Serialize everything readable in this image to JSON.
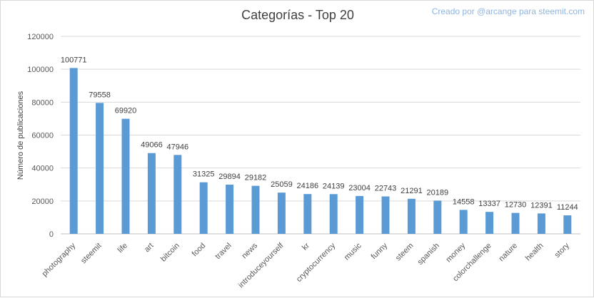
{
  "title": "Categorías - Top 20",
  "credit": "Creado por @arcange para steemit.com",
  "chart_data": {
    "type": "bar",
    "title": "Categorías - Top 20",
    "xlabel": "",
    "ylabel": "Número de publicaciones",
    "ylim": [
      0,
      120000
    ],
    "yticks": [
      0,
      20000,
      40000,
      60000,
      80000,
      100000,
      120000
    ],
    "grid": true,
    "bar_color": "#5b9bd5",
    "categories": [
      "photography",
      "steemit",
      "life",
      "art",
      "bitcoin",
      "food",
      "travel",
      "news",
      "introduceyourself",
      "kr",
      "cryptocurrency",
      "music",
      "funny",
      "steem",
      "spanish",
      "money",
      "colorchallenge",
      "nature",
      "health",
      "story"
    ],
    "values": [
      100771,
      79558,
      69920,
      49066,
      47946,
      31325,
      29894,
      29182,
      25059,
      24186,
      24139,
      23004,
      22743,
      21291,
      20189,
      14558,
      13337,
      12730,
      12391,
      11244
    ]
  }
}
